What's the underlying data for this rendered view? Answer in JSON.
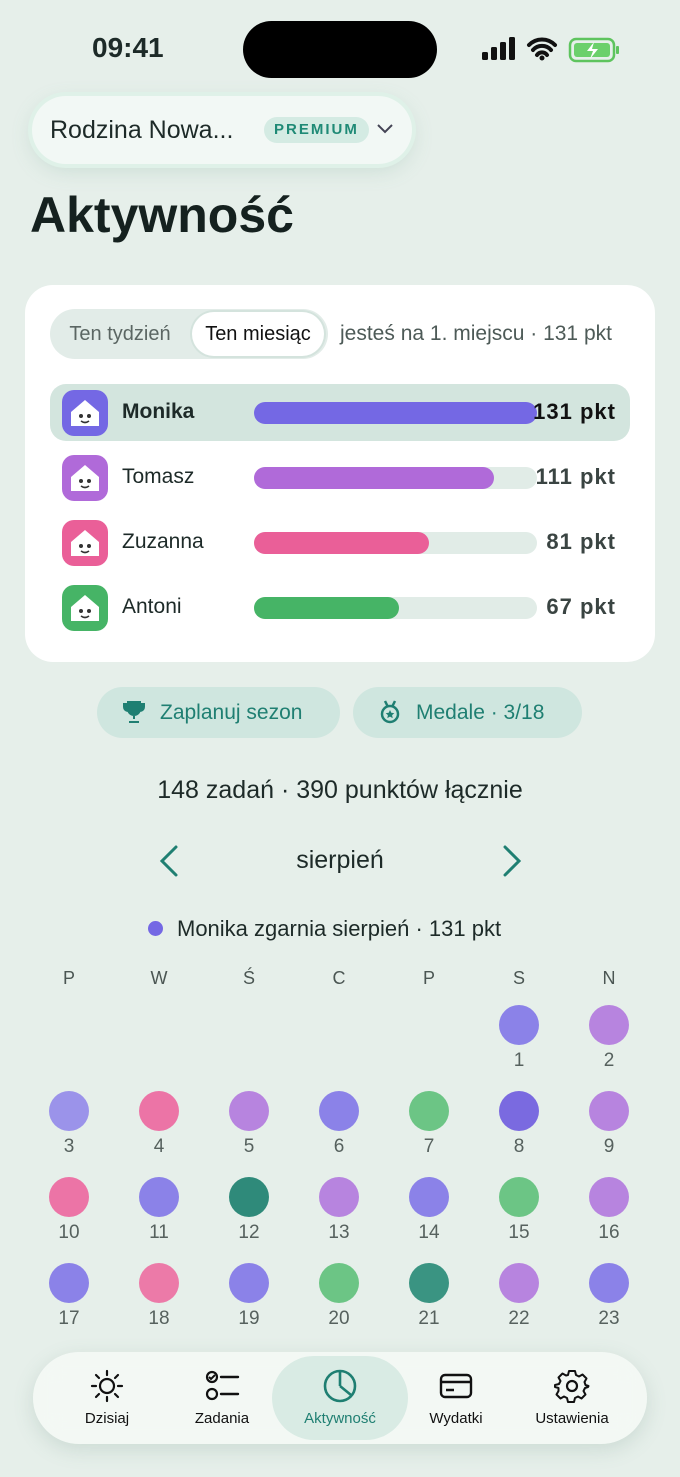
{
  "status_bar": {
    "time": "09:41"
  },
  "header": {
    "family": "Rodzina Nowa...",
    "badge": "PREMIUM",
    "title": "Aktywność"
  },
  "leaderboard": {
    "tabs": [
      "Ten tydzień",
      "Ten miesiąc"
    ],
    "active_tab": 1,
    "rank_text": "jesteś na 1. miejscu · 131 pkt",
    "names": [
      "Monika",
      "Tomasz",
      "Zuzanna",
      "Antoni"
    ],
    "values": [
      131,
      111,
      81,
      67
    ],
    "value_labels": [
      "131 pkt",
      "111 pkt",
      "81 pkt",
      "67 pkt"
    ],
    "colors": [
      "#7468e4",
      "#b06ad9",
      "#ea5f98",
      "#46b466"
    ],
    "highlight": 0
  },
  "buttons": [
    "Zaplanuj sezon",
    "Medale · 3/18"
  ],
  "summary": "148 zadań · 390 punktów łącznie",
  "calendar": {
    "month": "sierpień",
    "winner": "Monika zgarnia sierpień · 131 pkt",
    "winner_color": "#7468e4",
    "weekdays": [
      "P",
      "W",
      "Ś",
      "C",
      "P",
      "S",
      "N"
    ],
    "days": [
      null,
      null,
      null,
      null,
      null,
      {
        "label": "1",
        "color": "#8b82e8"
      },
      {
        "label": "2",
        "color": "#b784df"
      },
      {
        "label": "3",
        "color": "#9b93ea"
      },
      {
        "label": "4",
        "color": "#ec74a6"
      },
      {
        "label": "5",
        "color": "#b784df"
      },
      {
        "label": "6",
        "color": "#8b82e8"
      },
      {
        "label": "7",
        "color": "#6cc585"
      },
      {
        "label": "8",
        "color": "#7a6ae0"
      },
      {
        "label": "9",
        "color": "#b784df"
      },
      {
        "label": "10",
        "color": "#ec74a6"
      },
      {
        "label": "11",
        "color": "#8b82e8"
      },
      {
        "label": "12",
        "color": "#2f8a7a"
      },
      {
        "label": "13",
        "color": "#b784df"
      },
      {
        "label": "14",
        "color": "#8b82e8"
      },
      {
        "label": "15",
        "color": "#6cc585"
      },
      {
        "label": "16",
        "color": "#b784df"
      },
      {
        "label": "17",
        "color": "#8b82e8"
      },
      {
        "label": "18",
        "color": "#ec7aa8"
      },
      {
        "label": "19",
        "color": "#8b82e8"
      },
      {
        "label": "20",
        "color": "#6cc585"
      },
      {
        "label": "21",
        "color": "#3a9482"
      },
      {
        "label": "22",
        "color": "#b784df"
      },
      {
        "label": "23",
        "color": "#8b82e8"
      }
    ]
  },
  "nav": {
    "items": [
      "Dzisiaj",
      "Zadania",
      "Aktywność",
      "Wydatki",
      "Ustawienia"
    ],
    "active": 2
  }
}
